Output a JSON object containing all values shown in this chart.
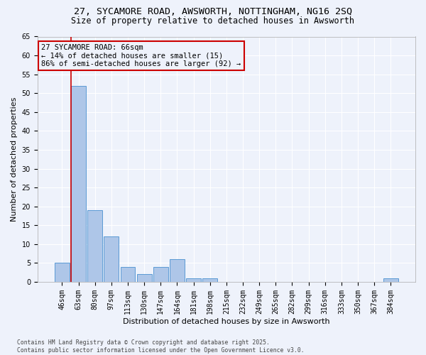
{
  "title_line1": "27, SYCAMORE ROAD, AWSWORTH, NOTTINGHAM, NG16 2SQ",
  "title_line2": "Size of property relative to detached houses in Awsworth",
  "xlabel": "Distribution of detached houses by size in Awsworth",
  "ylabel": "Number of detached properties",
  "categories": [
    "46sqm",
    "63sqm",
    "80sqm",
    "97sqm",
    "113sqm",
    "130sqm",
    "147sqm",
    "164sqm",
    "181sqm",
    "198sqm",
    "215sqm",
    "232sqm",
    "249sqm",
    "265sqm",
    "282sqm",
    "299sqm",
    "316sqm",
    "333sqm",
    "350sqm",
    "367sqm",
    "384sqm"
  ],
  "values": [
    5,
    52,
    19,
    12,
    4,
    2,
    4,
    6,
    1,
    1,
    0,
    0,
    0,
    0,
    0,
    0,
    0,
    0,
    0,
    0,
    1
  ],
  "bar_color": "#aec6e8",
  "bar_edge_color": "#5b9bd5",
  "subject_bar_index": 1,
  "subject_line_color": "#cc0000",
  "ylim": [
    0,
    65
  ],
  "yticks": [
    0,
    5,
    10,
    15,
    20,
    25,
    30,
    35,
    40,
    45,
    50,
    55,
    60,
    65
  ],
  "annotation_line1": "27 SYCAMORE ROAD: 66sqm",
  "annotation_line2": "← 14% of detached houses are smaller (15)",
  "annotation_line3": "86% of semi-detached houses are larger (92) →",
  "annotation_box_edgecolor": "#cc0000",
  "footer_text": "Contains HM Land Registry data © Crown copyright and database right 2025.\nContains public sector information licensed under the Open Government Licence v3.0.",
  "bg_color": "#eef2fb",
  "grid_color": "#ffffff",
  "title_fontsize": 9.5,
  "subtitle_fontsize": 8.5,
  "tick_fontsize": 7,
  "label_fontsize": 8,
  "annotation_fontsize": 7.5,
  "footer_fontsize": 5.8
}
